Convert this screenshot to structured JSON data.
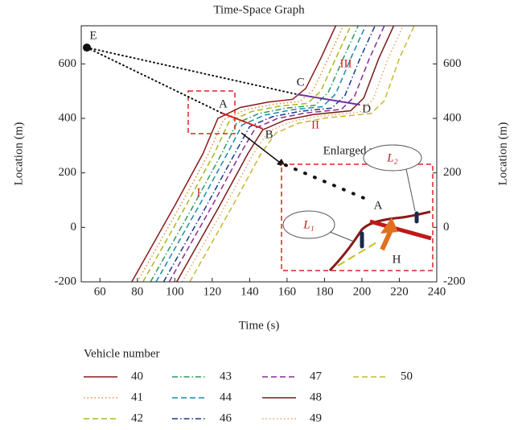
{
  "chart_data": {
    "type": "line",
    "title": "Time-Space Graph",
    "xlabel": "Time (s)",
    "ylabel": "Location (m)",
    "y2label": "Location (m)",
    "xlim": [
      50,
      240
    ],
    "ylim": [
      -200,
      740
    ],
    "y2lim": [
      -200,
      740
    ],
    "xticks": [
      60,
      80,
      100,
      120,
      140,
      160,
      180,
      200,
      220,
      240
    ],
    "yticks": [
      -200,
      0,
      200,
      400,
      600
    ],
    "y2ticks": [
      -200,
      0,
      200,
      400,
      600
    ],
    "legend_title": "Vehicle number",
    "series": [
      {
        "name": "40",
        "color": "#8b1a1a",
        "dash": "solid",
        "x": [
          77,
          100,
          115,
          123,
          135,
          150,
          163,
          170,
          178,
          186
        ],
        "values": [
          -200,
          80,
          270,
          400,
          440,
          460,
          470,
          510,
          620,
          740
        ]
      },
      {
        "name": "41",
        "color": "#e8893a",
        "dash": "dotted",
        "x": [
          80,
          103,
          118,
          126,
          138,
          153,
          167,
          174,
          182,
          190
        ],
        "values": [
          -200,
          80,
          270,
          395,
          432,
          452,
          462,
          505,
          620,
          740
        ]
      },
      {
        "name": "42",
        "color": "#a8b820",
        "dash": "dashed",
        "x": [
          83,
          106,
          121,
          129,
          141,
          156,
          171,
          178,
          186,
          194
        ],
        "values": [
          -200,
          80,
          270,
          388,
          425,
          445,
          455,
          500,
          620,
          740
        ]
      },
      {
        "name": "43",
        "color": "#2a9a5a",
        "dash": "dashdot",
        "x": [
          87,
          110,
          125,
          133,
          145,
          160,
          175,
          182,
          190,
          198
        ],
        "values": [
          -200,
          80,
          270,
          382,
          418,
          438,
          448,
          495,
          620,
          740
        ]
      },
      {
        "name": "44",
        "color": "#1a8ab0",
        "dash": "dashed",
        "x": [
          90,
          113,
          128,
          136,
          148,
          163,
          179,
          186,
          194,
          202
        ],
        "values": [
          -200,
          80,
          270,
          376,
          412,
          432,
          443,
          490,
          620,
          740
        ]
      },
      {
        "name": "46",
        "color": "#1a3a8a",
        "dash": "dashdot",
        "x": [
          94,
          117,
          132,
          140,
          152,
          167,
          184,
          191,
          199,
          207
        ],
        "values": [
          -200,
          80,
          270,
          370,
          406,
          426,
          438,
          485,
          620,
          740
        ]
      },
      {
        "name": "47",
        "color": "#8a2a9a",
        "dash": "dashed",
        "x": [
          97,
          120,
          135,
          143,
          155,
          170,
          189,
          196,
          204,
          212
        ],
        "values": [
          -200,
          80,
          270,
          364,
          400,
          420,
          433,
          480,
          620,
          740
        ]
      },
      {
        "name": "48",
        "color": "#7a1a1a",
        "dash": "solid",
        "x": [
          101,
          124,
          139,
          147,
          159,
          174,
          194,
          201,
          209,
          217
        ],
        "values": [
          -200,
          80,
          270,
          358,
          394,
          414,
          428,
          475,
          620,
          740
        ]
      },
      {
        "name": "49",
        "color": "#f0a060",
        "dash": "dotted",
        "x": [
          104,
          127,
          142,
          150,
          162,
          177,
          199,
          206,
          214,
          222
        ],
        "values": [
          -200,
          80,
          270,
          352,
          388,
          408,
          423,
          470,
          620,
          740
        ]
      },
      {
        "name": "50",
        "color": "#c8b830",
        "dash": "dashed",
        "x": [
          108,
          131,
          146,
          154,
          166,
          181,
          205,
          212,
          220,
          228
        ],
        "values": [
          -200,
          80,
          270,
          346,
          382,
          402,
          418,
          465,
          620,
          740
        ]
      }
    ],
    "annotations": [
      {
        "label": "E",
        "x": 53,
        "y": 660
      },
      {
        "label": "A",
        "x": 125,
        "y": 420
      },
      {
        "label": "B",
        "x": 147,
        "y": 362
      },
      {
        "label": "C",
        "x": 165.5,
        "y": 488
      },
      {
        "label": "D",
        "x": 199,
        "y": 450
      }
    ],
    "region_labels": [
      "I",
      "II",
      "III"
    ],
    "inset": {
      "title": "Enlarged view",
      "labels": [
        "L₁",
        "L₂",
        "A",
        "H"
      ]
    }
  }
}
